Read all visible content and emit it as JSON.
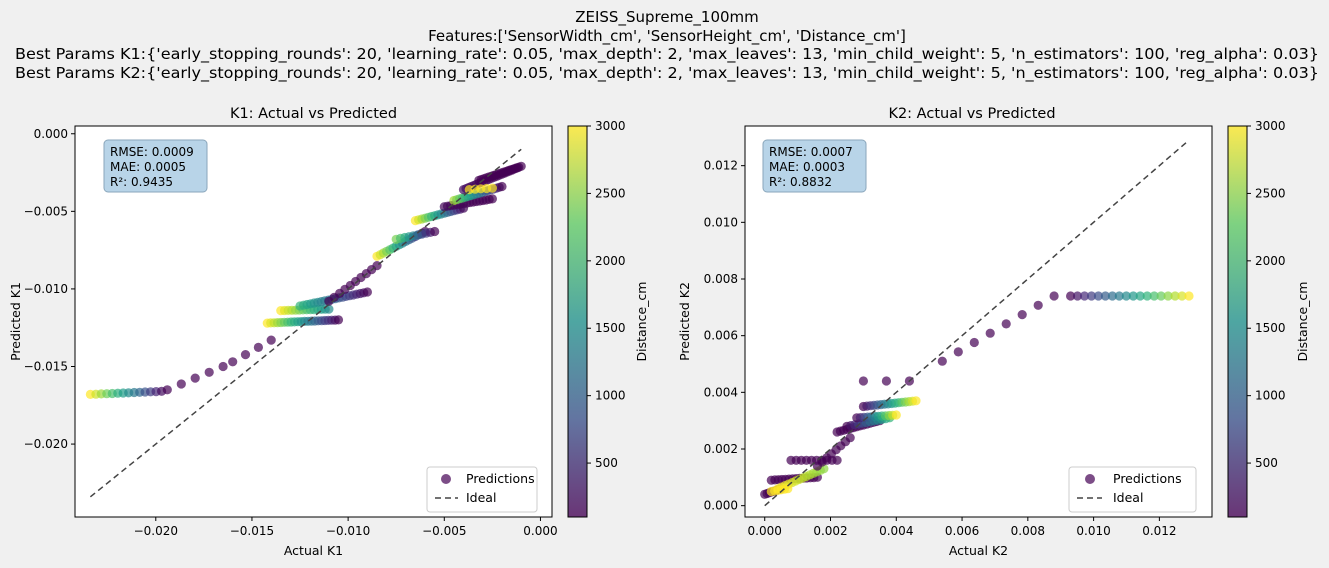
{
  "figure": {
    "suptitle": [
      "ZEISS_Supreme_100mm",
      "Features:['SensorWidth_cm', 'SensorHeight_cm', 'Distance_cm']",
      "Best Params K1:{'early_stopping_rounds': 20, 'learning_rate': 0.05, 'max_depth': 2, 'max_leaves': 13, 'min_child_weight': 5, 'n_estimators': 100, 'reg_alpha': 0.03}",
      "Best Params K2:{'early_stopping_rounds': 20, 'learning_rate': 0.05, 'max_depth': 2, 'max_leaves': 13, 'min_child_weight': 5, 'n_estimators': 100, 'reg_alpha': 0.03}"
    ]
  },
  "chart_data": [
    {
      "type": "scatter",
      "title": "K1: Actual vs Predicted",
      "xlabel": "Actual K1",
      "ylabel": "Predicted K1",
      "xlim": [
        -0.0242,
        0.0006
      ],
      "ylim": [
        -0.0247,
        0.0005
      ],
      "xticks": [
        -0.02,
        -0.015,
        -0.01,
        -0.005,
        0.0
      ],
      "xtick_labels": [
        "−0.020",
        "−0.015",
        "−0.010",
        "−0.005",
        "0.000"
      ],
      "yticks": [
        0.0,
        -0.005,
        -0.01,
        -0.015,
        -0.02
      ],
      "ytick_labels": [
        "0.000",
        "−0.005",
        "−0.010",
        "−0.015",
        "−0.020"
      ],
      "grid": false,
      "stats_text": [
        "RMSE: 0.0009",
        "MAE: 0.0005",
        "R²: 0.9435"
      ],
      "legend": {
        "position": "lower-right",
        "entries": [
          "Predictions",
          "Ideal"
        ]
      },
      "ideal_line": {
        "from": [
          -0.0234,
          -0.0234
        ],
        "to": [
          -0.001,
          -0.001
        ]
      },
      "colorbar": {
        "label": "Distance_cm",
        "min": 100,
        "max": 3000,
        "ticks": [
          500,
          1000,
          1500,
          2000,
          2500,
          3000
        ],
        "tick_labels": [
          "500",
          "1000",
          "1500",
          "2000",
          "2500",
          "3000"
        ]
      },
      "clusters": [
        {
          "x0": -0.0234,
          "x1": -0.0197,
          "y0": -0.0168,
          "y1": -0.0166,
          "n": 14,
          "c0": 3000,
          "c1": 200
        },
        {
          "x0": -0.0194,
          "x1": -0.0165,
          "y0": -0.0165,
          "y1": -0.015,
          "n": 5,
          "c0": 100,
          "c1": 100
        },
        {
          "x0": -0.016,
          "x1": -0.014,
          "y0": -0.0147,
          "y1": -0.0133,
          "n": 4,
          "c0": 100,
          "c1": 100
        },
        {
          "x0": -0.0142,
          "x1": -0.0105,
          "y0": -0.0122,
          "y1": -0.012,
          "n": 22,
          "c0": 3000,
          "c1": 100
        },
        {
          "x0": -0.0135,
          "x1": -0.011,
          "y0": -0.0114,
          "y1": -0.0113,
          "n": 14,
          "c0": 3000,
          "c1": 1500
        },
        {
          "x0": -0.0125,
          "x1": -0.009,
          "y0": -0.0111,
          "y1": -0.0102,
          "n": 20,
          "c0": 2000,
          "c1": 100
        },
        {
          "x0": -0.011,
          "x1": -0.0085,
          "y0": -0.0108,
          "y1": -0.0085,
          "n": 10,
          "c0": 100,
          "c1": 100
        },
        {
          "x0": -0.0085,
          "x1": -0.006,
          "y0": -0.0079,
          "y1": -0.0063,
          "n": 16,
          "c0": 3000,
          "c1": 100
        },
        {
          "x0": -0.0075,
          "x1": -0.0055,
          "y0": -0.0068,
          "y1": -0.0063,
          "n": 10,
          "c0": 2400,
          "c1": 100
        },
        {
          "x0": -0.0065,
          "x1": -0.004,
          "y0": -0.0056,
          "y1": -0.0048,
          "n": 16,
          "c0": 3000,
          "c1": 150
        },
        {
          "x0": -0.005,
          "x1": -0.0025,
          "y0": -0.0047,
          "y1": -0.0042,
          "n": 16,
          "c0": 150,
          "c1": 100
        },
        {
          "x0": -0.0045,
          "x1": -0.002,
          "y0": -0.0043,
          "y1": -0.0034,
          "n": 18,
          "c0": 2600,
          "c1": 100
        },
        {
          "x0": -0.004,
          "x1": -0.0012,
          "y0": -0.0036,
          "y1": -0.0022,
          "n": 22,
          "c0": 200,
          "c1": 100
        },
        {
          "x0": -0.0032,
          "x1": -0.001,
          "y0": -0.003,
          "y1": -0.0021,
          "n": 18,
          "c0": 100,
          "c1": 100
        },
        {
          "x0": -0.0037,
          "x1": -0.0025,
          "y0": -0.0036,
          "y1": -0.0035,
          "n": 5,
          "c0": 3000,
          "c1": 3000
        }
      ]
    },
    {
      "type": "scatter",
      "title": "K2: Actual vs Predicted",
      "xlabel": "Actual K2",
      "ylabel": "Predicted K2",
      "xlim": [
        -0.0006,
        0.0136
      ],
      "ylim": [
        -0.0004,
        0.0134
      ],
      "xticks": [
        0.0,
        0.002,
        0.004,
        0.006,
        0.008,
        0.01,
        0.012
      ],
      "xtick_labels": [
        "0.000",
        "0.002",
        "0.004",
        "0.006",
        "0.008",
        "0.010",
        "0.012"
      ],
      "yticks": [
        0.0,
        0.002,
        0.004,
        0.006,
        0.008,
        0.01,
        0.012
      ],
      "ytick_labels": [
        "0.000",
        "0.002",
        "0.004",
        "0.006",
        "0.008",
        "0.010",
        "0.012"
      ],
      "grid": false,
      "stats_text": [
        "RMSE: 0.0007",
        "MAE: 0.0003",
        "R²: 0.8832"
      ],
      "legend": {
        "position": "lower-right",
        "entries": [
          "Predictions",
          "Ideal"
        ]
      },
      "ideal_line": {
        "from": [
          0.0,
          0.0
        ],
        "to": [
          0.0129,
          0.0129
        ]
      },
      "colorbar": {
        "label": "Distance_cm",
        "min": 100,
        "max": 3000,
        "ticks": [
          500,
          1000,
          1500,
          2000,
          2500,
          3000
        ],
        "tick_labels": [
          "500",
          "1000",
          "1500",
          "2000",
          "2500",
          "3000"
        ]
      },
      "clusters": [
        {
          "x0": 0.0,
          "x1": 0.0005,
          "y0": 0.0004,
          "y1": 0.0006,
          "n": 8,
          "c0": 100,
          "c1": 100
        },
        {
          "x0": 0.0002,
          "x1": 0.0016,
          "y0": 0.0009,
          "y1": 0.001,
          "n": 14,
          "c0": 100,
          "c1": 100
        },
        {
          "x0": 0.0004,
          "x1": 0.0018,
          "y0": 0.0006,
          "y1": 0.0013,
          "n": 14,
          "c0": 3000,
          "c1": 2500
        },
        {
          "x0": 0.0002,
          "x1": 0.0007,
          "y0": 0.0005,
          "y1": 0.0006,
          "n": 6,
          "c0": 3000,
          "c1": 3000
        },
        {
          "x0": 0.0008,
          "x1": 0.0022,
          "y0": 0.0016,
          "y1": 0.0016,
          "n": 10,
          "c0": 100,
          "c1": 100
        },
        {
          "x0": 0.0016,
          "x1": 0.0026,
          "y0": 0.0014,
          "y1": 0.0024,
          "n": 8,
          "c0": 100,
          "c1": 100
        },
        {
          "x0": 0.0022,
          "x1": 0.0035,
          "y0": 0.0026,
          "y1": 0.003,
          "n": 14,
          "c0": 100,
          "c1": 100
        },
        {
          "x0": 0.0025,
          "x1": 0.0038,
          "y0": 0.0028,
          "y1": 0.0031,
          "n": 12,
          "c0": 100,
          "c1": 2000
        },
        {
          "x0": 0.0028,
          "x1": 0.004,
          "y0": 0.0031,
          "y1": 0.0032,
          "n": 12,
          "c0": 100,
          "c1": 3000
        },
        {
          "x0": 0.003,
          "x1": 0.0046,
          "y0": 0.0035,
          "y1": 0.0037,
          "n": 16,
          "c0": 100,
          "c1": 3000
        },
        {
          "x0": 0.003,
          "x1": 0.0044,
          "y0": 0.0044,
          "y1": 0.0044,
          "n": 3,
          "c0": 100,
          "c1": 100
        },
        {
          "x0": 0.0054,
          "x1": 0.0088,
          "y0": 0.0051,
          "y1": 0.0074,
          "n": 8,
          "c0": 100,
          "c1": 100
        },
        {
          "x0": 0.0093,
          "x1": 0.0129,
          "y0": 0.0074,
          "y1": 0.0074,
          "n": 18,
          "c0": 100,
          "c1": 3000
        }
      ]
    }
  ],
  "colors": {
    "background": "#f0f0f0",
    "axes_face": "#ffffff",
    "ideal_line": "#444444",
    "stats_box_fill": "#b8d4e8",
    "stats_box_edge": "#8aa6bb",
    "colormap": "viridis",
    "marker_alpha": 0.7
  }
}
